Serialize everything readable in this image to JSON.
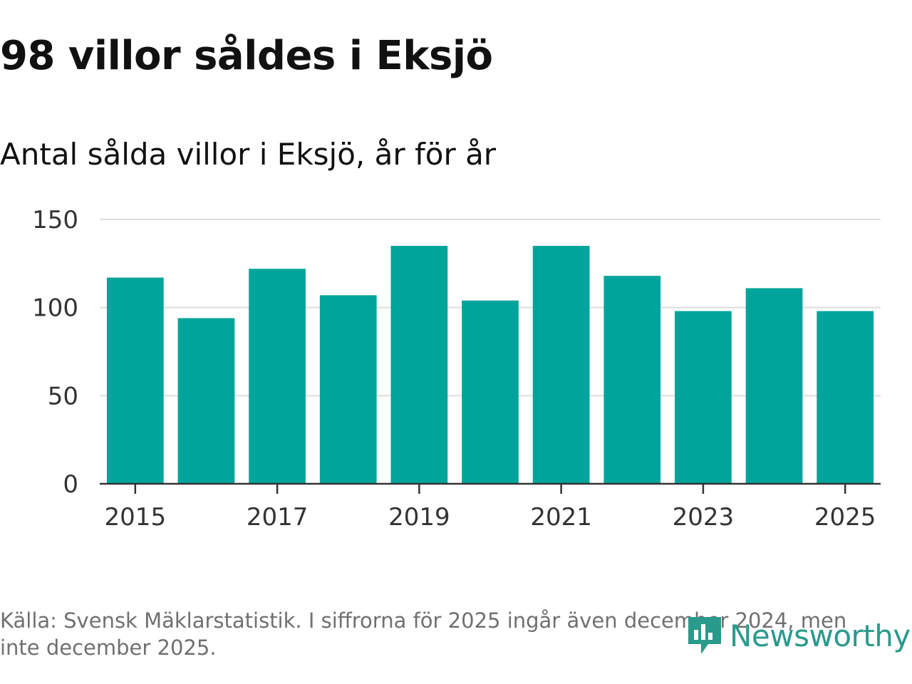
{
  "title": "98 villor såldes i Eksjö",
  "subtitle": "Antal sålda villor i Eksjö, år för år",
  "source": "Källa: Svensk Mäklarstatistik. I siffrorna för 2025 ingår även december 2024, men inte december 2025.",
  "logo": {
    "text": "Newsworthy",
    "icon": "newsworthy-logo-icon"
  },
  "colors": {
    "bar": "#00a49a",
    "grid": "#dddddd",
    "axis": "#333333",
    "tick_text": "#333333",
    "logo": "#2a9a8c"
  },
  "chart_data": {
    "type": "bar",
    "categories": [
      "2015",
      "2016",
      "2017",
      "2018",
      "2019",
      "2020",
      "2021",
      "2022",
      "2023",
      "2024",
      "2025"
    ],
    "values": [
      117,
      94,
      122,
      107,
      135,
      104,
      135,
      118,
      98,
      111,
      98
    ],
    "title": "98 villor såldes i Eksjö",
    "subtitle": "Antal sålda villor i Eksjö, år för år",
    "xlabel": "",
    "ylabel": "",
    "ylim": [
      0,
      150
    ],
    "yticks": [
      "0",
      "50",
      "100",
      "150"
    ],
    "xticks": [
      "2015",
      "2017",
      "2019",
      "2021",
      "2023",
      "2025"
    ],
    "grid": true
  }
}
